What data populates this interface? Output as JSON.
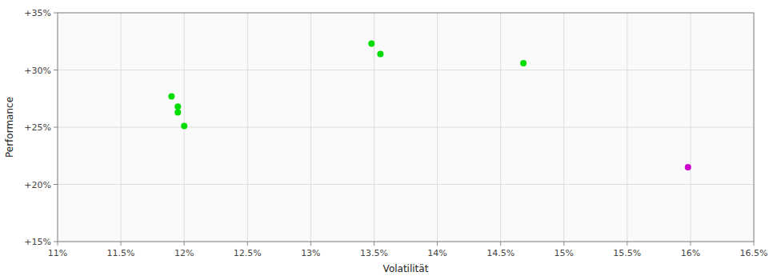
{
  "chart_data": {
    "type": "scatter",
    "xlabel": "Volatilität",
    "ylabel": "Performance",
    "series": [
      {
        "color": "#00dd00",
        "x": [
          0.119,
          0.1195,
          0.1195,
          0.12,
          0.1348,
          0.1355,
          0.1468
        ],
        "values": [
          0.277,
          0.268,
          0.263,
          0.251,
          0.323,
          0.314,
          0.306
        ]
      },
      {
        "color": "#cc00cc",
        "x": [
          0.1598
        ],
        "values": [
          0.215
        ]
      }
    ],
    "xlim": [
      0.11,
      0.165
    ],
    "ylim": [
      0.15,
      0.35
    ],
    "xticks": [
      {
        "value": 0.11,
        "label": "11%"
      },
      {
        "value": 0.115,
        "label": "11.5%"
      },
      {
        "value": 0.12,
        "label": "12%"
      },
      {
        "value": 0.125,
        "label": "12.5%"
      },
      {
        "value": 0.13,
        "label": "13%"
      },
      {
        "value": 0.135,
        "label": "13.5%"
      },
      {
        "value": 0.14,
        "label": "14%"
      },
      {
        "value": 0.145,
        "label": "14.5%"
      },
      {
        "value": 0.15,
        "label": "15%"
      },
      {
        "value": 0.155,
        "label": "15.5%"
      },
      {
        "value": 0.16,
        "label": "16%"
      },
      {
        "value": 0.165,
        "label": "16.5%"
      }
    ],
    "yticks": [
      {
        "value": 0.15,
        "label": "+15%"
      },
      {
        "value": 0.2,
        "label": "+20%"
      },
      {
        "value": 0.25,
        "label": "+25%"
      },
      {
        "value": 0.3,
        "label": "+30%"
      },
      {
        "value": 0.35,
        "label": "+35%"
      }
    ],
    "grid": true
  }
}
